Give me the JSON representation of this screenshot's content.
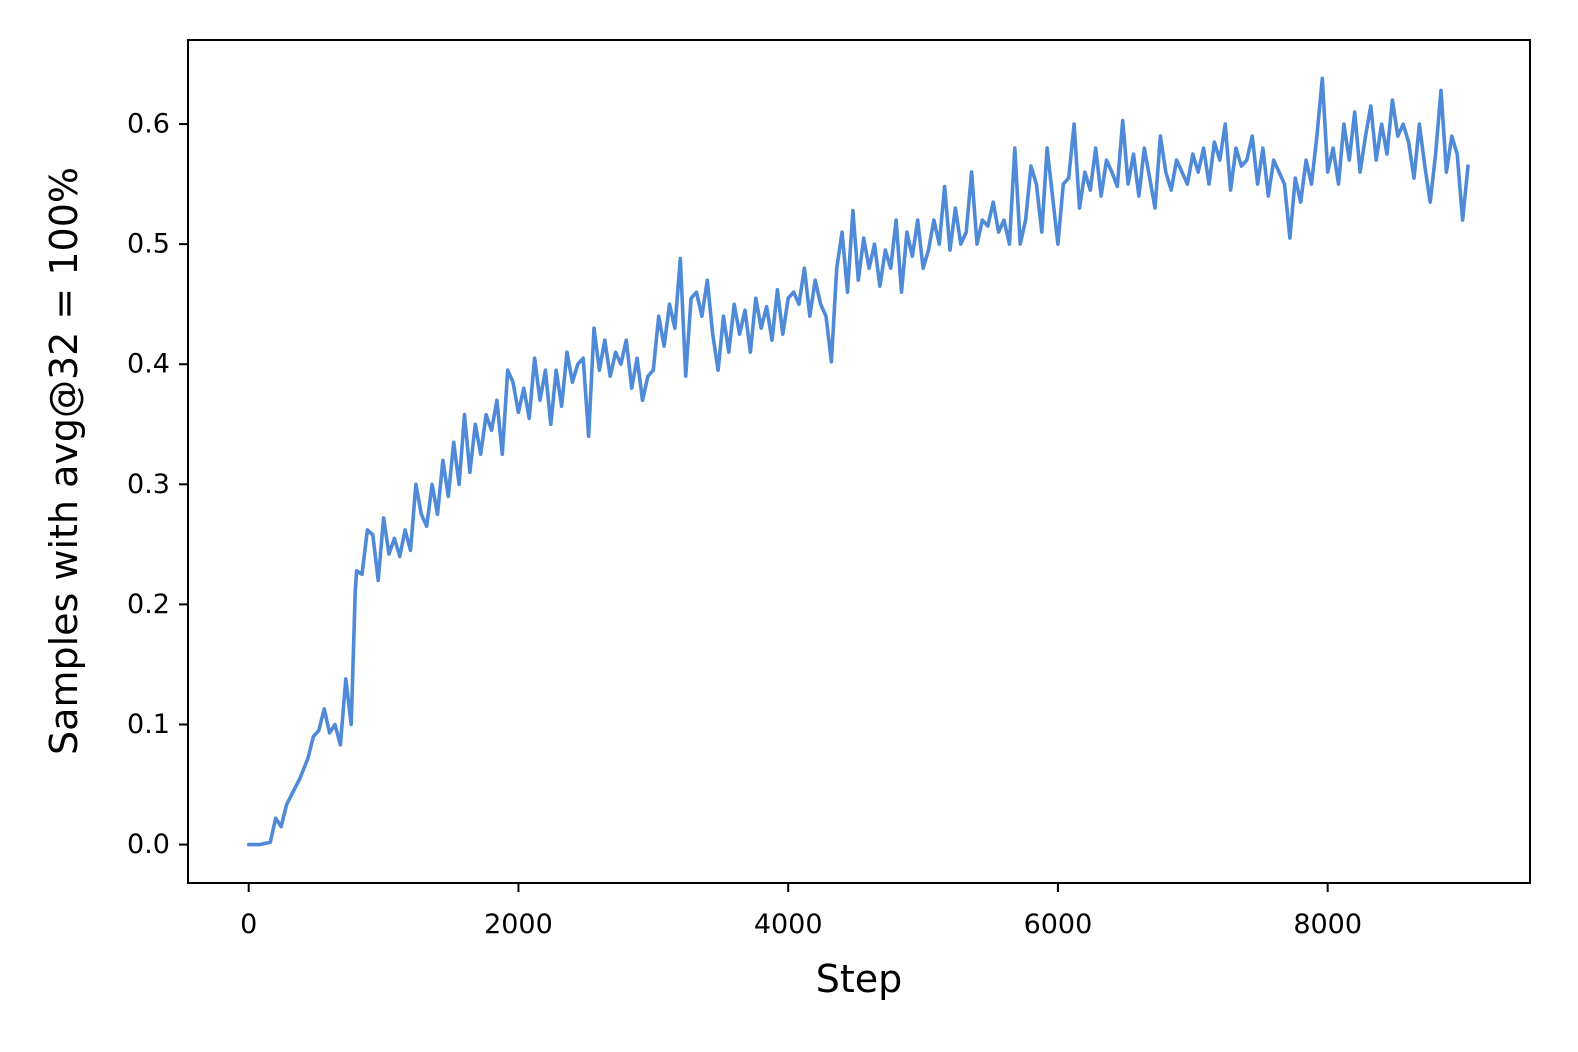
{
  "chart_data": {
    "type": "line",
    "title": "",
    "xlabel": "Step",
    "ylabel": "Samples with avg@32 = 100%",
    "xlim": [
      -450,
      9500
    ],
    "ylim": [
      -0.032,
      0.67
    ],
    "xticks": [
      0,
      2000,
      4000,
      6000,
      8000
    ],
    "xtick_labels": [
      "0",
      "2000",
      "4000",
      "6000",
      "8000"
    ],
    "yticks": [
      0.0,
      0.1,
      0.2,
      0.3,
      0.4,
      0.5,
      0.6
    ],
    "ytick_labels": [
      "0.0",
      "0.1",
      "0.2",
      "0.3",
      "0.4",
      "0.5",
      "0.6"
    ],
    "grid": false,
    "line_color": "#4f8ad8",
    "series": [
      {
        "x": [
          0,
          80,
          160,
          200,
          240,
          280,
          320,
          380,
          440,
          480,
          520,
          560,
          600,
          640,
          680,
          720,
          760,
          790,
          800,
          840,
          880,
          920,
          960,
          1000,
          1040,
          1080,
          1120,
          1160,
          1200,
          1240,
          1280,
          1320,
          1360,
          1400,
          1440,
          1480,
          1520,
          1560,
          1600,
          1640,
          1680,
          1720,
          1760,
          1800,
          1840,
          1880,
          1920,
          1960,
          2000,
          2040,
          2080,
          2120,
          2160,
          2200,
          2240,
          2280,
          2320,
          2360,
          2400,
          2440,
          2480,
          2520,
          2560,
          2600,
          2640,
          2680,
          2720,
          2760,
          2800,
          2840,
          2880,
          2920,
          2960,
          3000,
          3040,
          3080,
          3120,
          3160,
          3200,
          3240,
          3280,
          3320,
          3360,
          3400,
          3440,
          3480,
          3520,
          3560,
          3600,
          3640,
          3680,
          3720,
          3760,
          3800,
          3840,
          3880,
          3920,
          3960,
          4000,
          4040,
          4080,
          4120,
          4160,
          4200,
          4240,
          4280,
          4320,
          4360,
          4400,
          4440,
          4480,
          4520,
          4560,
          4600,
          4640,
          4680,
          4720,
          4760,
          4800,
          4840,
          4880,
          4920,
          4960,
          5000,
          5040,
          5080,
          5120,
          5160,
          5200,
          5240,
          5280,
          5320,
          5360,
          5400,
          5440,
          5480,
          5520,
          5560,
          5600,
          5640,
          5680,
          5720,
          5760,
          5800,
          5840,
          5880,
          5920,
          5960,
          6000,
          6040,
          6080,
          6120,
          6160,
          6200,
          6240,
          6280,
          6320,
          6360,
          6400,
          6440,
          6480,
          6520,
          6560,
          6600,
          6640,
          6680,
          6720,
          6760,
          6800,
          6840,
          6880,
          6920,
          6960,
          7000,
          7040,
          7080,
          7120,
          7160,
          7200,
          7240,
          7280,
          7320,
          7360,
          7400,
          7440,
          7480,
          7520,
          7560,
          7600,
          7640,
          7680,
          7720,
          7760,
          7800,
          7840,
          7880,
          7920,
          7960,
          8000,
          8040,
          8080,
          8120,
          8160,
          8200,
          8240,
          8280,
          8320,
          8360,
          8400,
          8440,
          8480,
          8520,
          8560,
          8600,
          8640,
          8680,
          8720,
          8760,
          8800,
          8840,
          8880,
          8920,
          8960,
          9000,
          9040
        ],
        "y": [
          0.0,
          0.0,
          0.002,
          0.022,
          0.015,
          0.033,
          0.042,
          0.055,
          0.072,
          0.09,
          0.095,
          0.113,
          0.093,
          0.1,
          0.083,
          0.138,
          0.1,
          0.21,
          0.228,
          0.225,
          0.262,
          0.258,
          0.22,
          0.272,
          0.242,
          0.255,
          0.24,
          0.262,
          0.245,
          0.3,
          0.275,
          0.265,
          0.3,
          0.275,
          0.32,
          0.29,
          0.335,
          0.3,
          0.358,
          0.31,
          0.35,
          0.325,
          0.358,
          0.345,
          0.37,
          0.325,
          0.395,
          0.385,
          0.36,
          0.38,
          0.355,
          0.405,
          0.37,
          0.395,
          0.35,
          0.395,
          0.365,
          0.41,
          0.385,
          0.4,
          0.405,
          0.34,
          0.43,
          0.395,
          0.42,
          0.39,
          0.41,
          0.4,
          0.42,
          0.38,
          0.405,
          0.37,
          0.39,
          0.395,
          0.44,
          0.415,
          0.45,
          0.43,
          0.488,
          0.39,
          0.455,
          0.46,
          0.44,
          0.47,
          0.425,
          0.395,
          0.44,
          0.41,
          0.45,
          0.425,
          0.445,
          0.41,
          0.455,
          0.43,
          0.448,
          0.42,
          0.462,
          0.425,
          0.455,
          0.46,
          0.45,
          0.48,
          0.44,
          0.47,
          0.45,
          0.44,
          0.402,
          0.48,
          0.51,
          0.46,
          0.528,
          0.47,
          0.505,
          0.48,
          0.5,
          0.465,
          0.495,
          0.48,
          0.52,
          0.46,
          0.51,
          0.49,
          0.52,
          0.48,
          0.495,
          0.52,
          0.5,
          0.548,
          0.495,
          0.53,
          0.5,
          0.51,
          0.56,
          0.5,
          0.52,
          0.515,
          0.535,
          0.51,
          0.52,
          0.5,
          0.58,
          0.5,
          0.52,
          0.565,
          0.55,
          0.51,
          0.58,
          0.54,
          0.5,
          0.55,
          0.555,
          0.6,
          0.53,
          0.56,
          0.545,
          0.58,
          0.54,
          0.57,
          0.56,
          0.548,
          0.603,
          0.55,
          0.575,
          0.54,
          0.58,
          0.555,
          0.53,
          0.59,
          0.56,
          0.545,
          0.57,
          0.56,
          0.55,
          0.575,
          0.56,
          0.58,
          0.55,
          0.585,
          0.57,
          0.6,
          0.545,
          0.58,
          0.565,
          0.57,
          0.59,
          0.55,
          0.58,
          0.54,
          0.57,
          0.56,
          0.55,
          0.505,
          0.555,
          0.535,
          0.57,
          0.55,
          0.59,
          0.638,
          0.56,
          0.58,
          0.55,
          0.6,
          0.57,
          0.61,
          0.56,
          0.59,
          0.615,
          0.57,
          0.6,
          0.575,
          0.62,
          0.59,
          0.6,
          0.585,
          0.555,
          0.6,
          0.565,
          0.535,
          0.575,
          0.628,
          0.56,
          0.59,
          0.575,
          0.52,
          0.565
        ]
      }
    ]
  }
}
